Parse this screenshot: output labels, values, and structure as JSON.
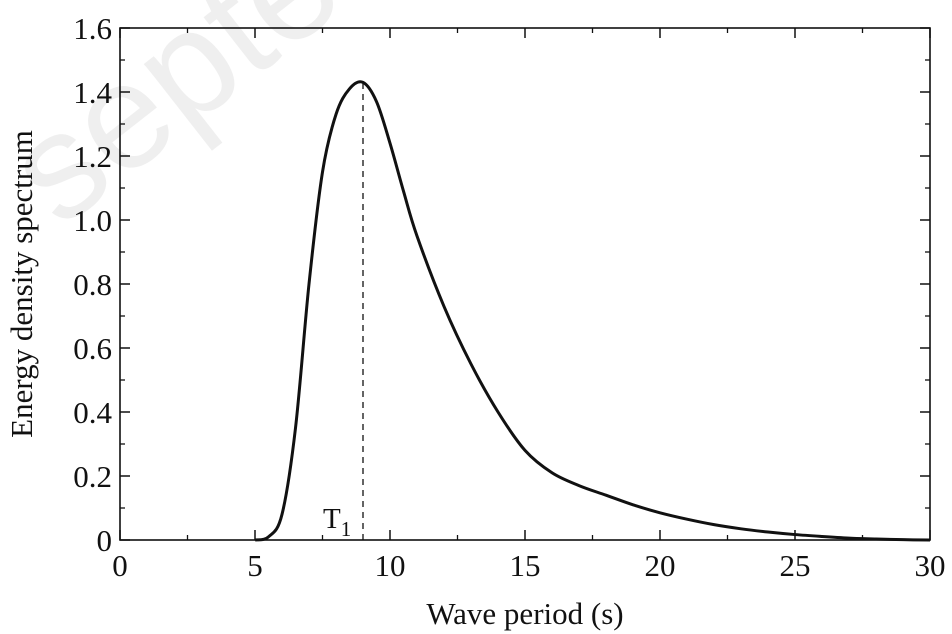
{
  "chart_data": {
    "type": "line",
    "title": "",
    "xlabel": "Wave period (s)",
    "ylabel": "Energy density spectrum",
    "xlim": [
      0,
      30
    ],
    "ylim": [
      0,
      1.6
    ],
    "xticks": [
      0,
      5,
      10,
      15,
      20,
      25,
      30
    ],
    "xtick_labels": [
      "0",
      "5",
      "10",
      "15",
      "20",
      "25",
      "30"
    ],
    "yticks": [
      0,
      0.2,
      0.4,
      0.6,
      0.8,
      1.0,
      1.2,
      1.4,
      1.6
    ],
    "ytick_labels": [
      "0",
      "0.2",
      "0.4",
      "0.6",
      "0.8",
      "1.0",
      "1.2",
      "1.4",
      "1.6"
    ],
    "grid": false,
    "series": [
      {
        "color": "#111111",
        "x": [
          5.0,
          5.5,
          6.0,
          6.5,
          7.0,
          7.5,
          8.0,
          8.5,
          9.0,
          9.5,
          10.0,
          10.5,
          11.0,
          12.0,
          13.0,
          14.0,
          15.0,
          16.0,
          17.0,
          18.0,
          19.0,
          20.0,
          21.0,
          22.0,
          23.0,
          24.0,
          25.0,
          26.0,
          27.0,
          28.0,
          29.0,
          30.0
        ],
        "y": [
          0.0,
          0.01,
          0.08,
          0.35,
          0.8,
          1.15,
          1.33,
          1.41,
          1.43,
          1.37,
          1.24,
          1.09,
          0.95,
          0.73,
          0.55,
          0.4,
          0.28,
          0.21,
          0.17,
          0.14,
          0.11,
          0.085,
          0.065,
          0.048,
          0.035,
          0.025,
          0.017,
          0.011,
          0.006,
          0.003,
          0.001,
          0.0
        ]
      }
    ],
    "annotations": [
      {
        "text": "T",
        "subscript": "1",
        "x": 9.0,
        "style": "dashed-vertical-line"
      }
    ],
    "watermark": "septe"
  }
}
